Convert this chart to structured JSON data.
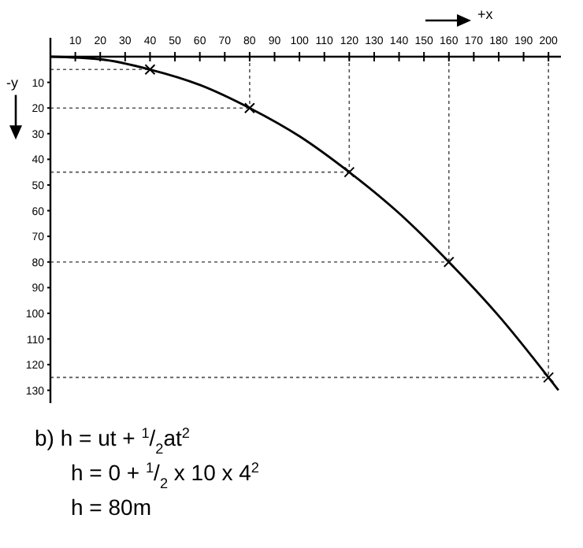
{
  "chart_data": {
    "type": "line",
    "xlabel": "+x",
    "ylabel": "-y",
    "x": [
      0,
      20,
      40,
      60,
      80,
      100,
      120,
      140,
      160,
      180,
      200,
      204
    ],
    "xlim": [
      0,
      205
    ],
    "xticks": [
      10,
      20,
      30,
      40,
      50,
      60,
      70,
      80,
      90,
      100,
      110,
      120,
      130,
      140,
      150,
      160,
      170,
      180,
      190,
      200
    ],
    "ylim": [
      135,
      0
    ],
    "yticks": [
      10,
      20,
      30,
      40,
      50,
      60,
      70,
      80,
      90,
      100,
      110,
      120,
      130
    ],
    "series": [
      {
        "color": "#000000",
        "marker": "none",
        "values": [
          0,
          1,
          5,
          11,
          20,
          31,
          45,
          61,
          80,
          101,
          125,
          130
        ]
      },
      {
        "type": "scatter",
        "color": "#000000",
        "marker": "cross",
        "x": [
          40,
          80,
          120,
          160,
          200
        ],
        "values": [
          5,
          20,
          45,
          80,
          125
        ]
      }
    ],
    "ref_lines": [
      {
        "axis": "x",
        "value": 80,
        "line_style": "dotted"
      },
      {
        "axis": "x",
        "value": 120,
        "line_style": "dotted"
      },
      {
        "axis": "x",
        "value": 160,
        "line_style": "dotted"
      },
      {
        "axis": "x",
        "value": 200,
        "line_style": "dotted"
      },
      {
        "axis": "y",
        "value": 5,
        "line_style": "dotted"
      },
      {
        "axis": "y",
        "value": 20,
        "line_style": "dotted"
      },
      {
        "axis": "y",
        "value": 45,
        "line_style": "dotted"
      },
      {
        "axis": "y",
        "value": 80,
        "line_style": "dotted"
      },
      {
        "axis": "y",
        "value": 125,
        "line_style": "dotted"
      }
    ],
    "grid": false,
    "annotations": [
      "b)  h = ut + $^{1}$/$_{2}$at$^{2}$",
      "h = 0 + $^{1}$/$_{2}$ x 10 x 4$^{2}$",
      "h = 80m"
    ]
  }
}
